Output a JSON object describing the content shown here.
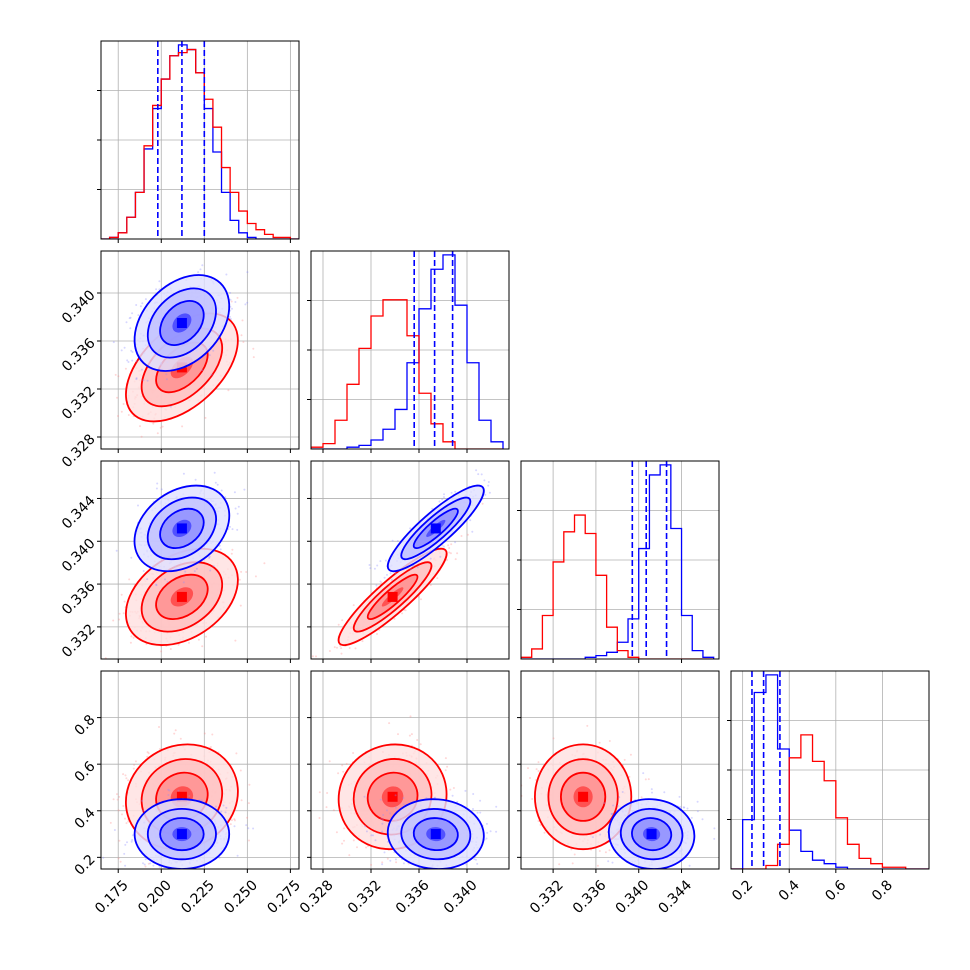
{
  "chart_data": {
    "type": "corner",
    "grid": true,
    "series_colors": [
      "#0000ff",
      "#ff0000"
    ],
    "quantile_line_style": "dashed",
    "quantile_line_color": "#0000ff",
    "parameters": [
      {
        "range": [
          0.165,
          0.28
        ],
        "ticks": [
          0.175,
          0.2,
          0.225,
          0.25,
          0.275
        ],
        "tick_labels": [
          "0.175",
          "0.200",
          "0.225",
          "0.250",
          "0.275"
        ]
      },
      {
        "range": [
          0.327,
          0.3435
        ],
        "ticks": [
          0.328,
          0.332,
          0.336,
          0.34
        ],
        "tick_labels": [
          "0.328",
          "0.332",
          "0.336",
          "0.340"
        ]
      },
      {
        "range": [
          0.329,
          0.3475
        ],
        "ticks": [
          0.332,
          0.336,
          0.34,
          0.344
        ],
        "tick_labels": [
          "0.332",
          "0.336",
          "0.340",
          "0.344"
        ]
      },
      {
        "range": [
          0.15,
          1.0
        ],
        "ticks": [
          0.2,
          0.4,
          0.6,
          0.8
        ],
        "tick_labels": [
          "0.2",
          "0.4",
          "0.6",
          "0.8"
        ]
      }
    ],
    "diagonal": [
      {
        "param": 0,
        "bin_edges": [
          0.165,
          0.17,
          0.175,
          0.18,
          0.185,
          0.19,
          0.195,
          0.2,
          0.205,
          0.21,
          0.215,
          0.22,
          0.225,
          0.23,
          0.235,
          0.24,
          0.245,
          0.25,
          0.255,
          0.26,
          0.265,
          0.27,
          0.275,
          0.28
        ],
        "series": [
          {
            "color": "#0000ff",
            "counts": [
              0,
              1,
              4,
              14,
              30,
              58,
              84,
              103,
              118,
              125,
              122,
              107,
              84,
              56,
              30,
              12,
              4,
              1,
              0,
              0,
              0,
              0,
              0
            ]
          },
          {
            "color": "#ff0000",
            "counts": [
              0,
              1,
              4,
              14,
              30,
              60,
              86,
              103,
              118,
              120,
              122,
              107,
              90,
              72,
              46,
              30,
              18,
              10,
              6,
              3,
              1,
              1,
              0
            ]
          }
        ],
        "quantiles": [
          0.198,
          0.212,
          0.225
        ]
      },
      {
        "param": 1,
        "bin_edges": [
          0.327,
          0.328,
          0.329,
          0.33,
          0.331,
          0.332,
          0.333,
          0.334,
          0.335,
          0.336,
          0.337,
          0.338,
          0.339,
          0.34,
          0.341,
          0.342,
          0.343
        ],
        "series": [
          {
            "color": "#0000ff",
            "counts": [
              0,
              0,
              0,
              1,
              2,
              5,
              11,
              22,
              48,
              78,
              100,
              108,
              80,
              48,
              16,
              4
            ]
          },
          {
            "color": "#ff0000",
            "counts": [
              1,
              3,
              16,
              36,
              56,
              74,
              83,
              83,
              63,
              31,
              14,
              4,
              0,
              0,
              0,
              0
            ]
          }
        ],
        "quantiles": [
          0.3356,
          0.3373,
          0.3388
        ]
      },
      {
        "param": 2,
        "bin_edges": [
          0.329,
          0.33,
          0.331,
          0.332,
          0.333,
          0.334,
          0.335,
          0.336,
          0.337,
          0.338,
          0.339,
          0.34,
          0.341,
          0.342,
          0.343,
          0.344,
          0.345,
          0.346,
          0.347
        ],
        "series": [
          {
            "color": "#0000ff",
            "counts": [
              0,
              0,
              0,
              0,
              0,
              0,
              1,
              2,
              4,
              10,
              24,
              66,
              110,
              116,
              78,
              26,
              5,
              1
            ]
          },
          {
            "color": "#ff0000",
            "counts": [
              1,
              6,
              26,
              58,
              76,
              86,
              75,
              50,
              19,
              5,
              1,
              0,
              0,
              0,
              0,
              0,
              0,
              0
            ]
          }
        ],
        "quantiles": [
          0.3394,
          0.3407,
          0.3426
        ]
      },
      {
        "param": 3,
        "bin_edges": [
          0.15,
          0.2,
          0.25,
          0.3,
          0.35,
          0.4,
          0.45,
          0.5,
          0.55,
          0.6,
          0.65,
          0.7,
          0.75,
          0.8,
          0.85,
          0.9,
          0.95,
          1.0
        ],
        "series": [
          {
            "color": "#0000ff",
            "counts": [
              0,
              28,
              100,
              110,
              68,
              22,
              10,
              5,
              3,
              1,
              0,
              0,
              0,
              0,
              0,
              0,
              0
            ]
          },
          {
            "color": "#ff0000",
            "counts": [
              0,
              0,
              0,
              2,
              14,
              63,
              76,
              61,
              50,
              29,
              14,
              6,
              3,
              1,
              1,
              0,
              0
            ]
          }
        ],
        "quantiles": [
          0.24,
          0.29,
          0.36
        ]
      }
    ],
    "scatter_panels": [
      {
        "x_param": 0,
        "y_param": 1,
        "series": [
          {
            "color": "#0000ff",
            "center": [
              0.212,
              0.3375
            ],
            "sd": [
              0.011,
              0.0016
            ],
            "corr": 0.35
          },
          {
            "color": "#ff0000",
            "center": [
              0.212,
              0.3338
            ],
            "sd": [
              0.013,
              0.0018
            ],
            "corr": 0.5
          }
        ]
      },
      {
        "x_param": 0,
        "y_param": 2,
        "series": [
          {
            "color": "#0000ff",
            "center": [
              0.212,
              0.3412
            ],
            "sd": [
              0.011,
              0.0016
            ],
            "corr": 0.3
          },
          {
            "color": "#ff0000",
            "center": [
              0.212,
              0.3348
            ],
            "sd": [
              0.013,
              0.0018
            ],
            "corr": 0.35
          }
        ]
      },
      {
        "x_param": 1,
        "y_param": 2,
        "series": [
          {
            "color": "#0000ff",
            "center": [
              0.3374,
              0.3412
            ],
            "sd": [
              0.0016,
              0.0016
            ],
            "corr": 0.88
          },
          {
            "color": "#ff0000",
            "center": [
              0.3338,
              0.3348
            ],
            "sd": [
              0.0018,
              0.0018
            ],
            "corr": 0.9
          }
        ]
      },
      {
        "x_param": 0,
        "y_param": 3,
        "series": [
          {
            "color": "#0000ff",
            "center": [
              0.212,
              0.3
            ],
            "sd": [
              0.011,
              0.06
            ],
            "corr": 0.0
          },
          {
            "color": "#ff0000",
            "center": [
              0.212,
              0.46
            ],
            "sd": [
              0.013,
              0.09
            ],
            "corr": 0.1
          }
        ]
      },
      {
        "x_param": 1,
        "y_param": 3,
        "series": [
          {
            "color": "#0000ff",
            "center": [
              0.3374,
              0.3
            ],
            "sd": [
              0.0016,
              0.06
            ],
            "corr": -0.05
          },
          {
            "color": "#ff0000",
            "center": [
              0.3338,
              0.46
            ],
            "sd": [
              0.0018,
              0.09
            ],
            "corr": 0.05
          }
        ]
      },
      {
        "x_param": 2,
        "y_param": 3,
        "series": [
          {
            "color": "#0000ff",
            "center": [
              0.3412,
              0.3
            ],
            "sd": [
              0.0016,
              0.06
            ],
            "corr": -0.05
          },
          {
            "color": "#ff0000",
            "center": [
              0.3348,
              0.46
            ],
            "sd": [
              0.0018,
              0.09
            ],
            "corr": 0.0
          }
        ]
      }
    ]
  }
}
